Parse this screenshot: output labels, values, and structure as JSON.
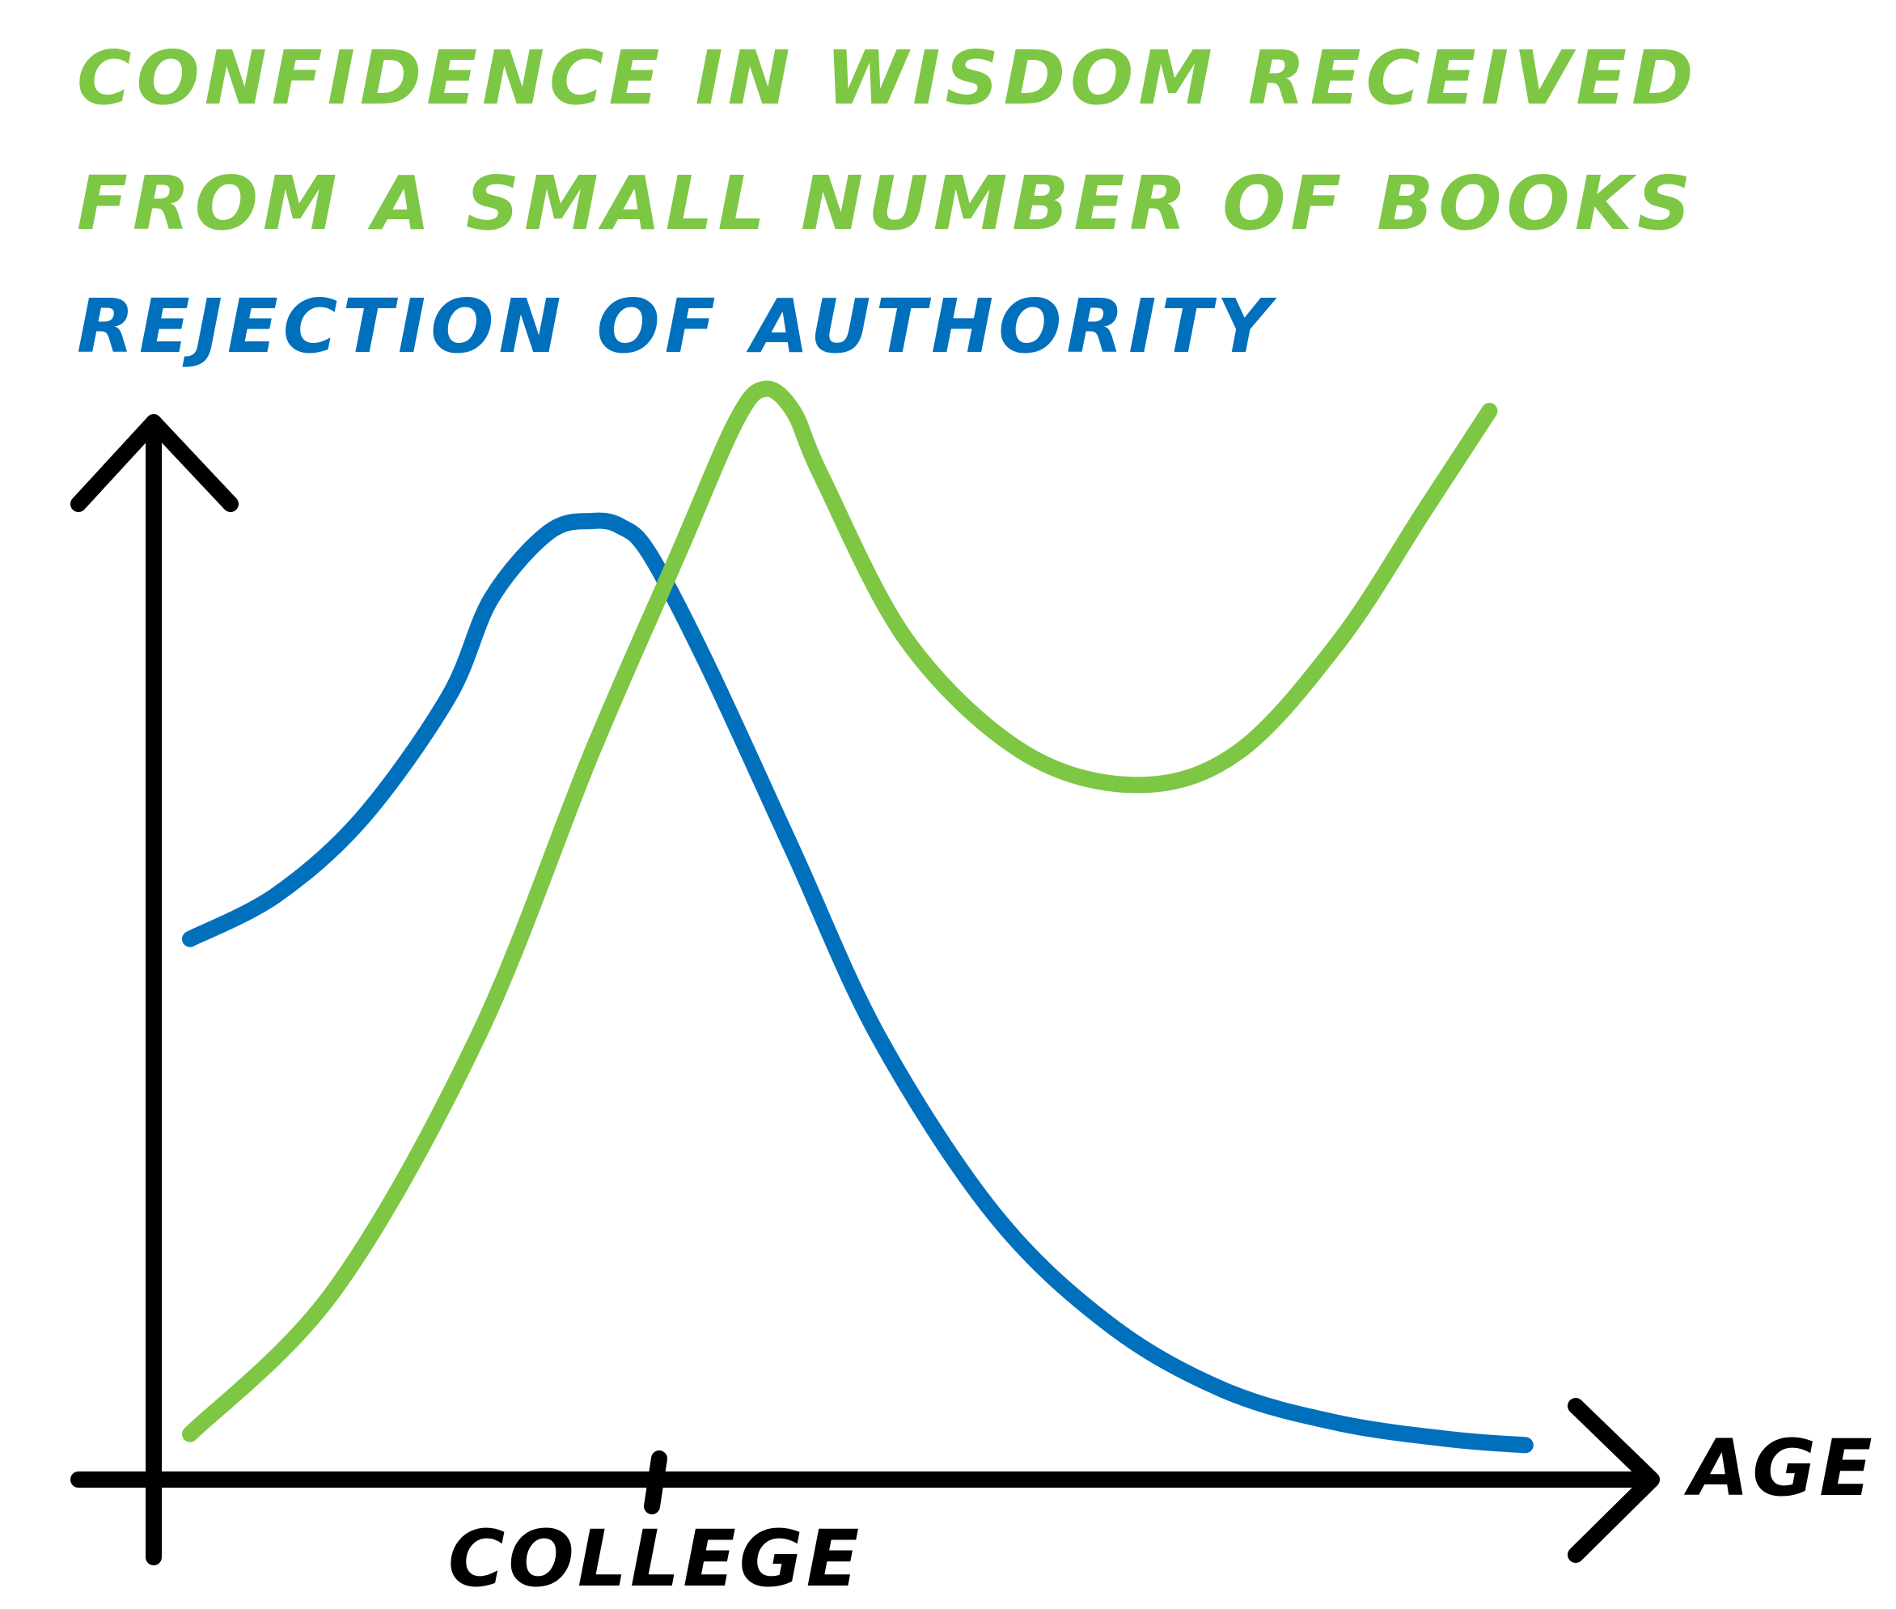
{
  "colors": {
    "series_1": "#7dc744",
    "series_2": "#0070bd",
    "axis": "#000000",
    "background": "#ffffff"
  },
  "chart_data": {
    "type": "line",
    "title": "",
    "xlabel": "AGE",
    "ylabel": "",
    "x_ticks": [
      "COLLEGE"
    ],
    "grid": false,
    "legend_placement": "top-left",
    "xlim": [
      0,
      100
    ],
    "ylim": [
      0,
      100
    ],
    "series": [
      {
        "name": "CONFIDENCE IN WISDOM RECEIVED FROM A SMALL NUMBER OF BOOKS",
        "color": "#7dc744",
        "x": [
          0,
          10,
          20,
          28,
          34,
          38,
          40,
          42,
          44,
          50,
          58,
          66,
          73,
          80,
          86,
          90.5
        ],
        "y": [
          2,
          15,
          38,
          64,
          82,
          94,
          97,
          95,
          89,
          74,
          64,
          61,
          64,
          74,
          86,
          95
        ]
      },
      {
        "name": "REJECTION OF AUTHORITY",
        "color": "#0070bd",
        "x": [
          0,
          6,
          12,
          18,
          21,
          25,
          28,
          30,
          32,
          36,
          42,
          48,
          56,
          64,
          72,
          80,
          88,
          93
        ],
        "y": [
          47,
          51,
          58,
          69,
          78,
          84,
          85,
          84.5,
          82,
          72,
          55,
          38,
          22,
          12,
          6,
          3,
          1.5,
          1
        ]
      }
    ]
  }
}
